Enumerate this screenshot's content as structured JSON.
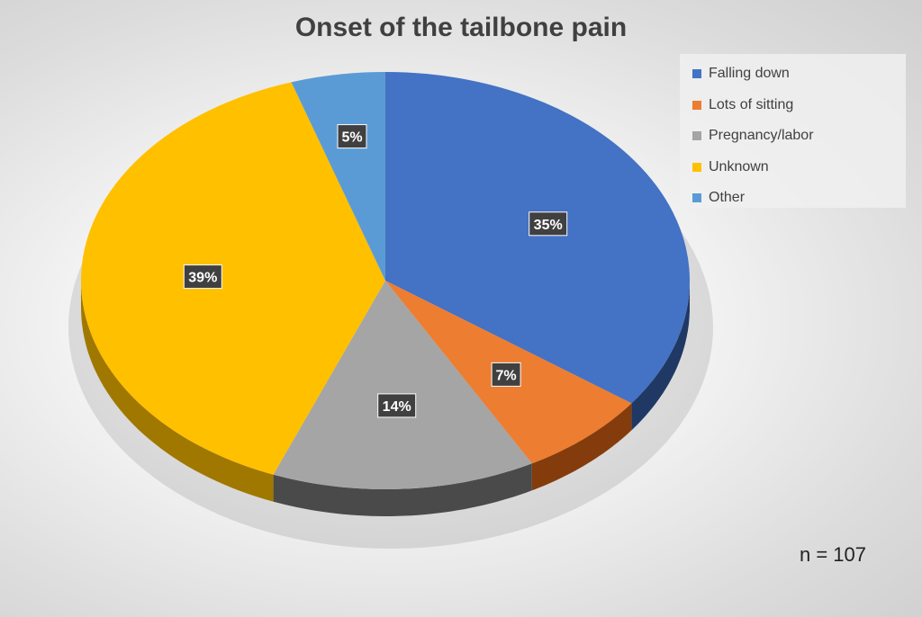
{
  "chart_data": {
    "type": "pie",
    "title": "Onset of the tailbone pain",
    "categories": [
      "Falling down",
      "Lots of sitting",
      "Pregnancy/labor",
      "Unknown",
      "Other"
    ],
    "values": [
      35,
      7,
      14,
      39,
      5
    ],
    "labels": [
      "35%",
      "7%",
      "14%",
      "39%",
      "5%"
    ],
    "colors": [
      "#4472C4",
      "#ED7D31",
      "#A5A5A5",
      "#FFC000",
      "#5B9BD5"
    ],
    "side_colors": [
      "#203864",
      "#843C0C",
      "#4a4a4a",
      "#a07800",
      "#2e5f8a"
    ],
    "legend_position": "top-right",
    "style": "3d",
    "annotation": "n = 107"
  }
}
